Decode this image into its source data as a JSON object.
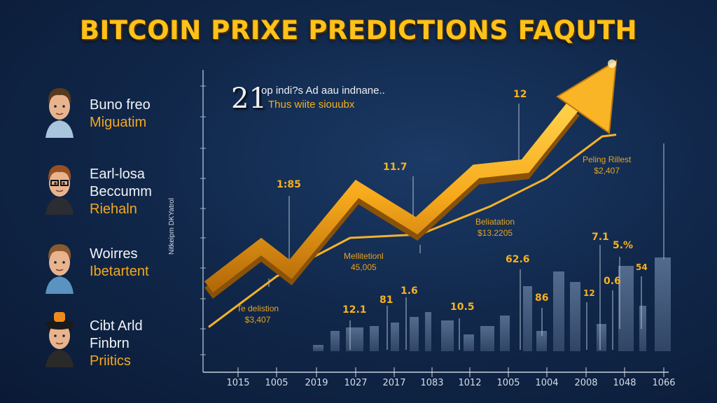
{
  "title": "BITCOIN PRIXE PREDICTIONS FAQUTH",
  "people": [
    {
      "lines": [
        "Buno freo"
      ],
      "role": "Miguatim",
      "hair": "#5a3a1e",
      "shirt": "#a9c4dd"
    },
    {
      "lines": [
        "Earl-losa",
        "Beccumm"
      ],
      "role": "Riehaln",
      "hair": "#9a4f22",
      "shirt": "#2b2d33"
    },
    {
      "lines": [
        "Woirres"
      ],
      "role": "Ibetartent",
      "hair": "#8a5a2e",
      "shirt": "#5a93c0"
    },
    {
      "lines": [
        "Cibt Arld",
        "Finbrn"
      ],
      "role": "Priitics",
      "hair": "#1a1a1a",
      "shirt": "#2a2a2a"
    }
  ],
  "chart_data": {
    "type": "bar",
    "title": "",
    "ylabel": "Nitkeipm DKYatrol",
    "xlabel": "",
    "x_ticks": [
      "1015",
      "1005",
      "2019",
      "1027",
      "2017",
      "1083",
      "1012",
      "1005",
      "1004",
      "2008",
      "1048",
      "1066"
    ],
    "bars": [
      9,
      29,
      34,
      36,
      41,
      49,
      56,
      44,
      24,
      36,
      51,
      93,
      29,
      114,
      99,
      39,
      122,
      65,
      134
    ],
    "series": [
      {
        "name": "main-trend-arrow",
        "values": [
          24,
          47,
          34,
          80,
          59,
          90,
          93,
          128,
          150
        ]
      },
      {
        "name": "thin-trend-line",
        "values": [
          1,
          30,
          52,
          54,
          70,
          86,
          110,
          111
        ]
      }
    ],
    "headline": {
      "number": "21",
      "line1": "op indi?s Ad aau indnane..",
      "line2": "Thus wiite siouubx"
    },
    "value_labels": [
      "1:85",
      "11.7",
      "12",
      "12.1",
      "81",
      "1.6",
      "10.5",
      "62.6",
      "86",
      "12",
      "7.1",
      "0.6",
      "5.%",
      "54"
    ],
    "annotations": [
      {
        "title": "Peling Rillest",
        "value": "$2,407"
      },
      {
        "title": "Beliatation",
        "value": "$13.2205"
      },
      {
        "title": "Mellitetionl",
        "value": "45,005"
      },
      {
        "title": "Te delistion",
        "value": "$3,407"
      }
    ],
    "colors": {
      "trend": "#f7a91c",
      "bars": "#4a6385",
      "axis": "#c9d2de"
    }
  }
}
